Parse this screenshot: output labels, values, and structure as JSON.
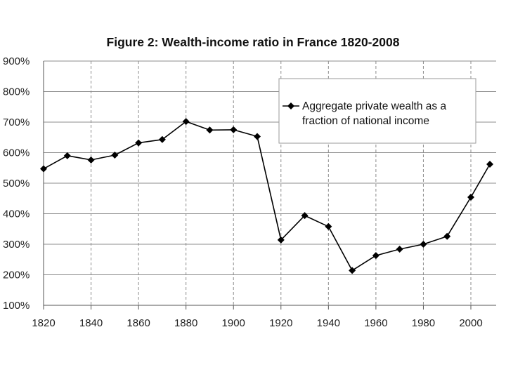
{
  "chart_data": {
    "type": "line",
    "title": "Figure 2: Wealth-income ratio in France 1820-2008",
    "xlabel": "",
    "ylabel": "",
    "xlim": [
      1820,
      2008
    ],
    "ylim": [
      100,
      900
    ],
    "x_ticks": [
      1820,
      1840,
      1860,
      1880,
      1900,
      1920,
      1940,
      1960,
      1980,
      2000
    ],
    "y_ticks": [
      "100%",
      "200%",
      "300%",
      "400%",
      "500%",
      "600%",
      "700%",
      "800%",
      "900%"
    ],
    "y_tick_values": [
      100,
      200,
      300,
      400,
      500,
      600,
      700,
      800,
      900
    ],
    "grid": {
      "horizontal": "solid",
      "vertical": "dashed"
    },
    "legend_position": "top-right",
    "legend_lines": [
      "Aggregate private wealth as a",
      "fraction of national income"
    ],
    "series": [
      {
        "name": "Aggregate private wealth as a fraction of national income",
        "color": "#000000",
        "marker": "diamond",
        "x": [
          1820,
          1830,
          1840,
          1850,
          1860,
          1870,
          1880,
          1890,
          1900,
          1910,
          1920,
          1930,
          1940,
          1950,
          1960,
          1970,
          1980,
          1990,
          2000,
          2008
        ],
        "y": [
          547,
          590,
          576,
          592,
          632,
          643,
          702,
          674,
          675,
          653,
          314,
          394,
          358,
          214,
          263,
          284,
          300,
          326,
          454,
          562
        ]
      }
    ]
  }
}
